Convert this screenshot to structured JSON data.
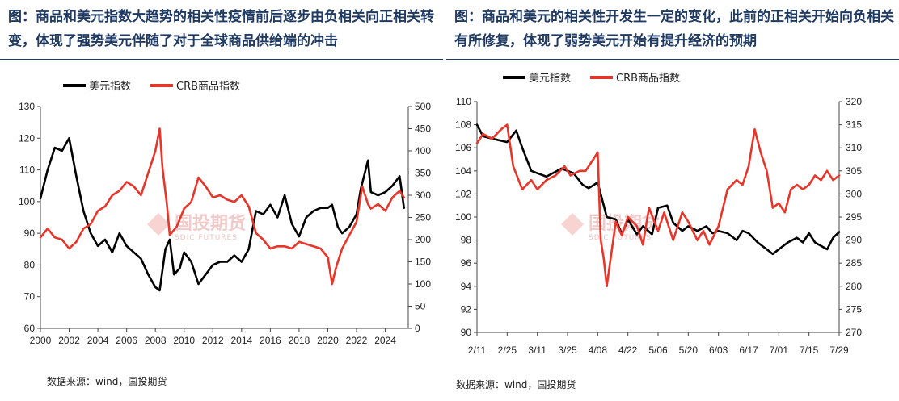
{
  "charts": [
    {
      "heading": "图：商品和美元指数大趋势的相关性疫情前后逐步由负相关向正相关转变，体现了强势美元伴随了对于全球商品供给端的冲击",
      "source": "数据来源：wind，国投期货",
      "watermark": {
        "cn": "国投期货",
        "en": "SDIC FUTURES"
      }
    },
    {
      "heading": "图：商品和美元的相关性开发生一定的变化，此前的正相关开始向负相关有所修复，体现了弱势美元开始有提升经济的预期",
      "source": "数据来源：wind，国投期货",
      "watermark": {
        "cn": "国投期货",
        "en": "SDIC FUTURES"
      }
    }
  ],
  "colors": {
    "usd": "#000000",
    "crb": "#e8352a",
    "accent": "#1f3a63"
  },
  "chart_data": [
    {
      "type": "line",
      "title": "",
      "x_ticks": [
        "2000",
        "2002",
        "2004",
        "2006",
        "2008",
        "2010",
        "2012",
        "2014",
        "2016",
        "2018",
        "2020",
        "2022",
        "2024"
      ],
      "xlim": [
        2000,
        2025.6
      ],
      "y_left": {
        "ticks": [
          "130",
          "120",
          "110",
          "100",
          "90",
          "80",
          "70",
          "60"
        ],
        "range": [
          60,
          130
        ]
      },
      "y_right": {
        "ticks": [
          "500",
          "450",
          "400",
          "350",
          "300",
          "250",
          "200",
          "150",
          "100",
          "50",
          "0"
        ],
        "range": [
          0,
          500
        ]
      },
      "series": [
        {
          "name": "美元指数",
          "axis": "left",
          "color": "#000000",
          "x": [
            2000,
            2000.5,
            2001,
            2001.5,
            2002,
            2002.5,
            2003,
            2003.5,
            2004,
            2004.5,
            2005,
            2005.5,
            2006,
            2006.5,
            2007,
            2007.5,
            2008,
            2008.3,
            2008.7,
            2009,
            2009.3,
            2009.7,
            2010,
            2010.5,
            2011,
            2011.5,
            2012,
            2012.5,
            2013,
            2013.5,
            2014,
            2014.5,
            2015,
            2015.5,
            2016,
            2016.5,
            2017,
            2017.5,
            2018,
            2018.5,
            2019,
            2019.5,
            2020,
            2020.3,
            2020.7,
            2021,
            2021.5,
            2022,
            2022.3,
            2022.8,
            2023,
            2023.5,
            2024,
            2024.5,
            2025,
            2025.3
          ],
          "y": [
            101,
            110,
            117,
            116,
            120,
            108,
            97,
            90,
            86,
            88,
            84,
            90,
            86,
            84,
            82,
            77,
            73,
            72,
            85,
            88,
            77,
            79,
            84,
            81,
            74,
            77,
            80,
            81,
            81,
            83,
            81,
            85,
            97,
            96,
            99,
            95,
            102,
            93,
            89,
            95,
            97,
            98,
            98,
            99,
            92,
            90,
            92,
            96,
            104,
            113,
            103,
            102,
            103,
            105,
            108,
            98
          ]
        },
        {
          "name": "CRB商品指数",
          "axis": "right",
          "color": "#e8352a",
          "x": [
            2000,
            2000.5,
            2001,
            2001.5,
            2002,
            2002.5,
            2003,
            2003.5,
            2004,
            2004.5,
            2005,
            2005.5,
            2006,
            2006.5,
            2007,
            2007.5,
            2008,
            2008.3,
            2008.5,
            2008.8,
            2009,
            2009.5,
            2010,
            2010.5,
            2011,
            2011.5,
            2012,
            2012.5,
            2013,
            2013.5,
            2014,
            2014.5,
            2015,
            2015.5,
            2016,
            2016.5,
            2017,
            2017.5,
            2018,
            2018.5,
            2019,
            2019.5,
            2020,
            2020.3,
            2020.6,
            2021,
            2021.5,
            2022,
            2022.4,
            2022.8,
            2023,
            2023.5,
            2024,
            2024.5,
            2025,
            2025.3
          ],
          "y": [
            205,
            225,
            205,
            200,
            180,
            195,
            225,
            235,
            265,
            275,
            300,
            310,
            330,
            320,
            300,
            350,
            400,
            450,
            360,
            280,
            210,
            230,
            270,
            285,
            340,
            320,
            295,
            300,
            290,
            285,
            300,
            275,
            215,
            200,
            180,
            185,
            185,
            180,
            195,
            190,
            185,
            180,
            160,
            100,
            140,
            180,
            210,
            240,
            320,
            280,
            270,
            280,
            265,
            295,
            310,
            295
          ]
        }
      ]
    },
    {
      "type": "line",
      "title": "",
      "x_ticks": [
        "2/11",
        "2/25",
        "3/11",
        "3/25",
        "4/08",
        "4/22",
        "5/06",
        "5/20",
        "6/03",
        "6/17",
        "7/01",
        "7/15",
        "7/29"
      ],
      "xlim": [
        0,
        12
      ],
      "y_left": {
        "ticks": [
          "110",
          "108",
          "106",
          "104",
          "102",
          "100",
          "98",
          "96",
          "94",
          "92",
          "90"
        ],
        "range": [
          90,
          110
        ]
      },
      "y_right": {
        "ticks": [
          "320",
          "315",
          "310",
          "305",
          "300",
          "295",
          "290",
          "285",
          "280",
          "275",
          "270"
        ],
        "range": [
          270,
          320
        ]
      },
      "series": [
        {
          "name": "美元指数",
          "axis": "left",
          "color": "#000000",
          "x": [
            0,
            0.2,
            0.5,
            1,
            1.3,
            1.5,
            1.8,
            2,
            2.3,
            2.8,
            3,
            3.2,
            3.5,
            3.7,
            4,
            4.2,
            4.3,
            4.6,
            4.8,
            5,
            5.3,
            5.5,
            5.8,
            6,
            6.3,
            6.5,
            6.8,
            7,
            7.3,
            7.6,
            7.8,
            8,
            8.3,
            8.6,
            8.8,
            9,
            9.3,
            9.6,
            9.8,
            10,
            10.3,
            10.6,
            10.8,
            11,
            11.2,
            11.4,
            11.6,
            11.8,
            12
          ],
          "y": [
            108,
            107,
            106.8,
            106.5,
            107.5,
            106,
            104,
            103.8,
            103.5,
            104.2,
            104,
            103.8,
            102.8,
            102.5,
            103,
            101,
            100,
            99.8,
            98.5,
            99.8,
            98.5,
            99.2,
            98.5,
            100.8,
            101,
            99.5,
            98.8,
            99.2,
            98.8,
            99.2,
            98.6,
            98.8,
            98.6,
            98,
            98.8,
            98.6,
            97.8,
            97.2,
            96.8,
            97.2,
            97.8,
            98.2,
            97.8,
            98.6,
            97.8,
            97.5,
            97.2,
            98.2,
            98.7
          ]
        },
        {
          "name": "CRB商品指数",
          "axis": "right",
          "color": "#e8352a",
          "x": [
            0,
            0.2,
            0.5,
            0.8,
            1,
            1.2,
            1.5,
            1.8,
            2,
            2.3,
            2.6,
            2.9,
            3.1,
            3.4,
            3.6,
            3.8,
            4,
            4.1,
            4.2,
            4.3,
            4.6,
            4.8,
            5,
            5.3,
            5.5,
            5.7,
            6,
            6.2,
            6.5,
            6.8,
            7,
            7.3,
            7.5,
            7.7,
            8,
            8.3,
            8.6,
            8.8,
            9,
            9.2,
            9.4,
            9.6,
            9.8,
            10,
            10.2,
            10.4,
            10.6,
            10.8,
            11,
            11.2,
            11.4,
            11.6,
            11.8,
            12
          ],
          "y": [
            311,
            313,
            312,
            314,
            315,
            306,
            301,
            303,
            301,
            303,
            304,
            306,
            304,
            305,
            305,
            307,
            309,
            290,
            286,
            280,
            294,
            291,
            295,
            293,
            289,
            297,
            292,
            296,
            290,
            296,
            294,
            290,
            292,
            289,
            293,
            301,
            303,
            302,
            306,
            314,
            309,
            305,
            297,
            298,
            296,
            301,
            302,
            301,
            302,
            304,
            303,
            305,
            303,
            304
          ]
        }
      ]
    }
  ]
}
